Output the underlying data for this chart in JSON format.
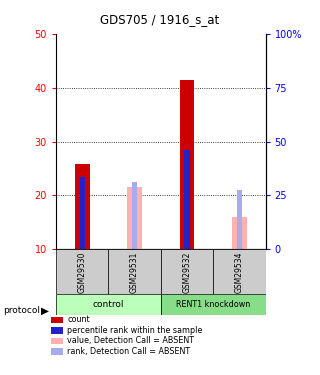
{
  "title": "GDS705 / 1916_s_at",
  "samples": [
    "GSM29530",
    "GSM29531",
    "GSM29532",
    "GSM29534"
  ],
  "ylim_left": [
    10,
    50
  ],
  "ylim_right": [
    0,
    100
  ],
  "yticks_left": [
    10,
    20,
    30,
    40,
    50
  ],
  "yticks_right": [
    0,
    25,
    50,
    75,
    100
  ],
  "ytick_labels_right": [
    "0",
    "25",
    "50",
    "75",
    "100%"
  ],
  "red_values": [
    25.8,
    0,
    41.5,
    0
  ],
  "blue_values": [
    23.5,
    0,
    28.5,
    0
  ],
  "pink_values": [
    0,
    21.5,
    0,
    16.0
  ],
  "lightblue_values": [
    0,
    22.5,
    0,
    21.0
  ],
  "red_color": "#cc0000",
  "blue_color": "#2222cc",
  "pink_color": "#ffb0b0",
  "lightblue_color": "#aaaaee",
  "bar_width": 0.28,
  "blue_bar_width": 0.1,
  "sample_box_color": "#cccccc",
  "group_bg_control": "#bbffbb",
  "group_bg_knockdown": "#88dd88",
  "legend_items": [
    {
      "color": "#cc0000",
      "label": "count"
    },
    {
      "color": "#2222cc",
      "label": "percentile rank within the sample"
    },
    {
      "color": "#ffb0b0",
      "label": "value, Detection Call = ABSENT"
    },
    {
      "color": "#aaaaee",
      "label": "rank, Detection Call = ABSENT"
    }
  ],
  "grid_dotted_at": [
    20,
    30,
    40
  ],
  "base": 10
}
